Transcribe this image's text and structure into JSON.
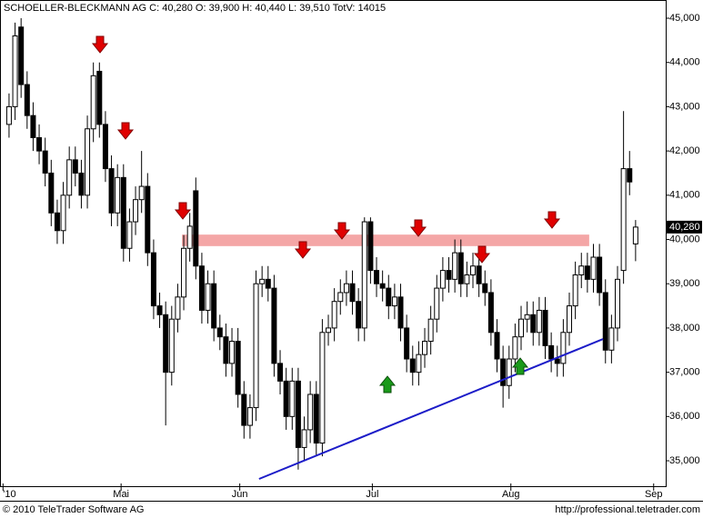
{
  "chart_data": {
    "type": "candlestick",
    "title": "SCHOELLER-BLECKMANN AG C: 40,280 O: 39,900 H: 40,440 L: 39,510 TotV: 14015",
    "footer_left": "© 2010 TeleTrader Software AG",
    "footer_right": "http://professional.teletrader.com",
    "last_price_label": "40,280",
    "up_color": "#ffffff",
    "down_color": "#000000",
    "xlim": [
      -1.5,
      109
    ],
    "xticks": [
      {
        "value": -1,
        "label": "'10"
      },
      {
        "value": 18.6,
        "label": "Mai"
      },
      {
        "value": 38.3,
        "label": "Jun"
      },
      {
        "value": 60.3,
        "label": "Jul"
      },
      {
        "value": 83.3,
        "label": "Aug"
      },
      {
        "value": 107,
        "label": "Sep"
      }
    ],
    "ylim": [
      34405,
      45411
    ],
    "yticks": [
      {
        "value": 35000,
        "label": "35,000"
      },
      {
        "value": 36000,
        "label": "36,000"
      },
      {
        "value": 37000,
        "label": "37,000"
      },
      {
        "value": 38000,
        "label": "38,000"
      },
      {
        "value": 39000,
        "label": "39,000"
      },
      {
        "value": 40000,
        "label": "40,000"
      },
      {
        "value": 41000,
        "label": "41,000"
      },
      {
        "value": 42000,
        "label": "42,000"
      },
      {
        "value": 43000,
        "label": "43,000"
      },
      {
        "value": 44000,
        "label": "44,000"
      },
      {
        "value": 45000,
        "label": "45,000"
      }
    ],
    "resistance_band": {
      "x": [
        28.7,
        96.3
      ],
      "y": [
        39850,
        40110
      ],
      "color": "#f4a6a6"
    },
    "trendline": {
      "x": [
        41.5,
        98.6
      ],
      "y": [
        34590,
        37750
      ],
      "color": "#1c1cc8"
    },
    "ohlc": {
      "open": [
        42600,
        43000,
        44800,
        43500,
        42800,
        42300,
        42000,
        41500,
        40600,
        40200,
        41000,
        41800,
        41500,
        41000,
        42500,
        43800,
        42600,
        41600,
        40600,
        41400,
        39800,
        40400,
        40900,
        41200,
        39700,
        38500,
        38300,
        37000,
        38200,
        38700,
        39800,
        41100,
        39400,
        38400,
        39000,
        38000,
        37800,
        37200,
        37700,
        36500,
        35800,
        36200,
        39000,
        39100,
        38900,
        37200,
        36800,
        36000,
        36800,
        35300,
        35700,
        36500,
        35400,
        37900,
        38000,
        38600,
        38800,
        39000,
        38600,
        38000,
        40400,
        39300,
        39000,
        38900,
        38500,
        38700,
        38000,
        37300,
        37000,
        37400,
        37700,
        38200,
        38900,
        39300,
        39100,
        39700,
        39000,
        39200,
        39400,
        39000,
        38800,
        37900,
        37300,
        36700,
        37300,
        37800,
        38200,
        38300,
        37900,
        38400,
        37600,
        37300,
        37200,
        37900,
        38500,
        39200,
        39400,
        39100,
        39600,
        38800,
        37500,
        38000,
        39300,
        41600,
        39900
      ],
      "high": [
        43300,
        44900,
        45000,
        43800,
        43100,
        42600,
        42300,
        41800,
        40900,
        41300,
        42100,
        42100,
        41800,
        42800,
        44000,
        44000,
        42900,
        41900,
        41700,
        41700,
        40700,
        41200,
        42000,
        41500,
        40000,
        38800,
        38600,
        38500,
        39000,
        40100,
        40600,
        41400,
        39700,
        39300,
        39300,
        38300,
        38100,
        38000,
        38000,
        36800,
        36500,
        39300,
        39400,
        39400,
        39200,
        37500,
        37100,
        37100,
        37100,
        36000,
        36800,
        36800,
        38200,
        38300,
        38900,
        39100,
        39300,
        39300,
        38900,
        40500,
        40500,
        39600,
        39300,
        39200,
        39000,
        39000,
        38300,
        37600,
        37700,
        38000,
        38500,
        39200,
        39600,
        39600,
        40000,
        40000,
        39500,
        39700,
        39700,
        39300,
        39100,
        38200,
        37600,
        37600,
        38100,
        38500,
        38600,
        38600,
        38700,
        38700,
        37900,
        37600,
        38200,
        38800,
        39500,
        39700,
        39700,
        39900,
        39900,
        39100,
        38300,
        39400,
        42900,
        42000,
        40440
      ],
      "low": [
        42300,
        42700,
        43200,
        42500,
        42000,
        41700,
        41200,
        40300,
        39900,
        39900,
        40700,
        41200,
        40700,
        40700,
        42200,
        42300,
        41300,
        40300,
        40300,
        39500,
        39500,
        40100,
        40600,
        39400,
        38200,
        38000,
        35800,
        36700,
        37900,
        38400,
        39500,
        39100,
        38100,
        38100,
        37700,
        37500,
        36900,
        36900,
        36200,
        35500,
        35500,
        35900,
        38700,
        38600,
        36900,
        36500,
        35700,
        35700,
        34800,
        35000,
        35400,
        35100,
        35100,
        37600,
        37700,
        38300,
        38500,
        38300,
        37700,
        37700,
        39000,
        38700,
        38600,
        38200,
        38200,
        37700,
        37000,
        36700,
        36700,
        37100,
        37400,
        37900,
        38600,
        38800,
        38800,
        38700,
        38700,
        38900,
        38700,
        38500,
        37600,
        37000,
        36200,
        36400,
        37000,
        37500,
        37900,
        37600,
        37600,
        37300,
        37000,
        36900,
        36900,
        37600,
        38200,
        38900,
        38800,
        38800,
        38500,
        37200,
        37200,
        37700,
        39000,
        41000,
        39510
      ],
      "close": [
        43000,
        44600,
        43500,
        42800,
        42300,
        42000,
        41500,
        40600,
        40200,
        41000,
        41800,
        41500,
        41000,
        42500,
        43700,
        42600,
        41600,
        40600,
        41400,
        39800,
        40400,
        40900,
        41200,
        39700,
        38500,
        38300,
        37000,
        38200,
        38700,
        39800,
        40300,
        39400,
        38400,
        39000,
        38000,
        37800,
        37200,
        37700,
        36500,
        35800,
        36200,
        39000,
        39100,
        38900,
        37200,
        36800,
        36000,
        36800,
        35300,
        35700,
        36500,
        35400,
        37900,
        38000,
        38600,
        38800,
        39000,
        38600,
        38000,
        40400,
        39300,
        39000,
        38900,
        38500,
        38700,
        38000,
        37300,
        37000,
        37400,
        37700,
        38200,
        38900,
        39300,
        39100,
        39700,
        39000,
        39200,
        39400,
        39000,
        38800,
        37900,
        37300,
        36700,
        37300,
        37800,
        38200,
        38300,
        37900,
        38400,
        37600,
        37300,
        37200,
        37900,
        38500,
        39200,
        39400,
        39100,
        39600,
        38800,
        37500,
        38000,
        39100,
        41600,
        41300,
        40280
      ]
    }
  }
}
